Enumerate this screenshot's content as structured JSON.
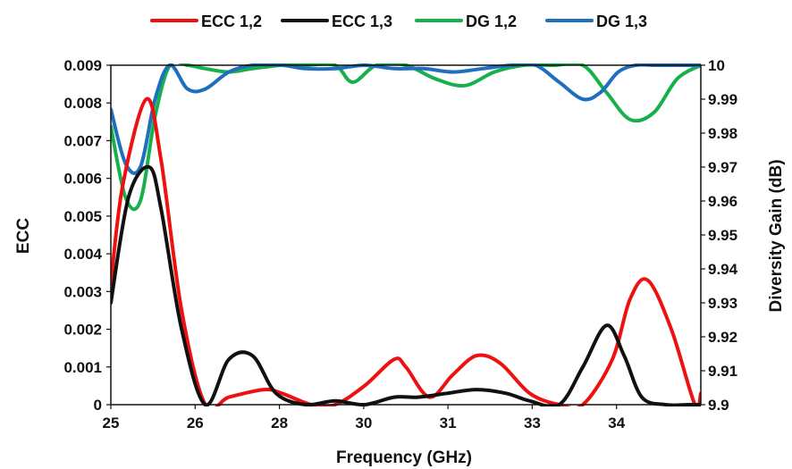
{
  "chart_data": {
    "type": "line",
    "x_ticks": [
      "25",
      "26",
      "28",
      "30",
      "31",
      "33",
      "34"
    ],
    "x_range": [
      24.0,
      34.0
    ],
    "xlabel": "Frequency (GHz)",
    "y_left": {
      "label": "ECC",
      "range": [
        0,
        0.009
      ],
      "ticks": [
        "0",
        "0.001",
        "0.002",
        "0.003",
        "0.004",
        "0.005",
        "0.006",
        "0.007",
        "0.008",
        "0.009"
      ]
    },
    "y_right": {
      "label": "Diversity Gain (dB)",
      "range": [
        9.9,
        10.0
      ],
      "ticks": [
        "9.9",
        "9.91",
        "9.92",
        "9.93",
        "9.94",
        "9.95",
        "9.96",
        "9.97",
        "9.98",
        "9.99",
        "10"
      ]
    },
    "grid": false,
    "legend_position": "top",
    "series": [
      {
        "name": "ECC 1,2",
        "axis": "left",
        "color": "#ee1111",
        "x": [
          24.0,
          24.2,
          24.6,
          24.85,
          25.2,
          25.6,
          26.0,
          26.6,
          26.9,
          27.4,
          27.8,
          28.3,
          28.8,
          29.0,
          29.4,
          29.8,
          30.2,
          30.6,
          31.1,
          31.6,
          32.0,
          32.5,
          32.8,
          33.1,
          33.5,
          33.9,
          34.0
        ],
        "values": [
          0.0032,
          0.0058,
          0.0081,
          0.0065,
          0.0025,
          0.0,
          0.0002,
          0.0004,
          0.0003,
          0.0,
          0.0,
          0.0005,
          0.0012,
          0.001,
          0.0002,
          0.0008,
          0.0013,
          0.0011,
          0.0003,
          0.0,
          0.0,
          0.0012,
          0.0028,
          0.0033,
          0.002,
          0.0,
          0.0003
        ]
      },
      {
        "name": "ECC 1,3",
        "axis": "left",
        "color": "#111111",
        "x": [
          24.0,
          24.3,
          24.65,
          24.85,
          25.2,
          25.6,
          26.0,
          26.4,
          26.8,
          27.3,
          27.8,
          28.3,
          28.8,
          29.2,
          29.7,
          30.2,
          30.7,
          31.1,
          31.6,
          32.0,
          32.4,
          32.7,
          33.0,
          33.4,
          33.8,
          34.0
        ],
        "values": [
          0.0027,
          0.0055,
          0.0063,
          0.0052,
          0.002,
          0.0,
          0.0012,
          0.0013,
          0.0003,
          0.0,
          0.0001,
          0.0,
          0.0002,
          0.0002,
          0.0003,
          0.0004,
          0.0003,
          0.0001,
          0.0,
          0.001,
          0.0021,
          0.0013,
          0.0002,
          0.0,
          0.0,
          0.0
        ]
      },
      {
        "name": "DG 1,2",
        "axis": "right",
        "color": "#17b04a",
        "x": [
          24.0,
          24.25,
          24.5,
          24.75,
          25.0,
          25.3,
          25.6,
          26.0,
          26.4,
          26.9,
          27.3,
          27.8,
          28.1,
          28.5,
          29.0,
          29.5,
          30.0,
          30.5,
          31.0,
          31.5,
          32.0,
          32.4,
          32.8,
          33.2,
          33.6,
          34.0
        ],
        "values": [
          9.982,
          9.961,
          9.96,
          9.985,
          10.0,
          10.0,
          9.999,
          9.998,
          9.999,
          10.0,
          10.0,
          10.0,
          9.995,
          10.0,
          10.0,
          9.996,
          9.994,
          9.998,
          10.0,
          10.0,
          10.0,
          9.992,
          9.984,
          9.986,
          9.996,
          10.0
        ]
      },
      {
        "name": "DG 1,3",
        "axis": "right",
        "color": "#1f6fbf",
        "x": [
          24.0,
          24.25,
          24.5,
          24.75,
          25.0,
          25.3,
          25.6,
          26.0,
          26.4,
          26.9,
          27.3,
          27.8,
          28.3,
          28.8,
          29.3,
          29.8,
          30.3,
          30.8,
          31.2,
          31.6,
          32.0,
          32.3,
          32.6,
          32.9,
          33.2,
          33.6,
          34.0
        ],
        "values": [
          9.987,
          9.971,
          9.97,
          9.99,
          10.0,
          9.993,
          9.993,
          9.998,
          10.0,
          10.0,
          9.999,
          9.999,
          10.0,
          9.999,
          9.999,
          9.998,
          9.999,
          10.0,
          10.0,
          9.995,
          9.99,
          9.992,
          9.998,
          10.0,
          10.0,
          10.0,
          10.0
        ]
      }
    ]
  }
}
